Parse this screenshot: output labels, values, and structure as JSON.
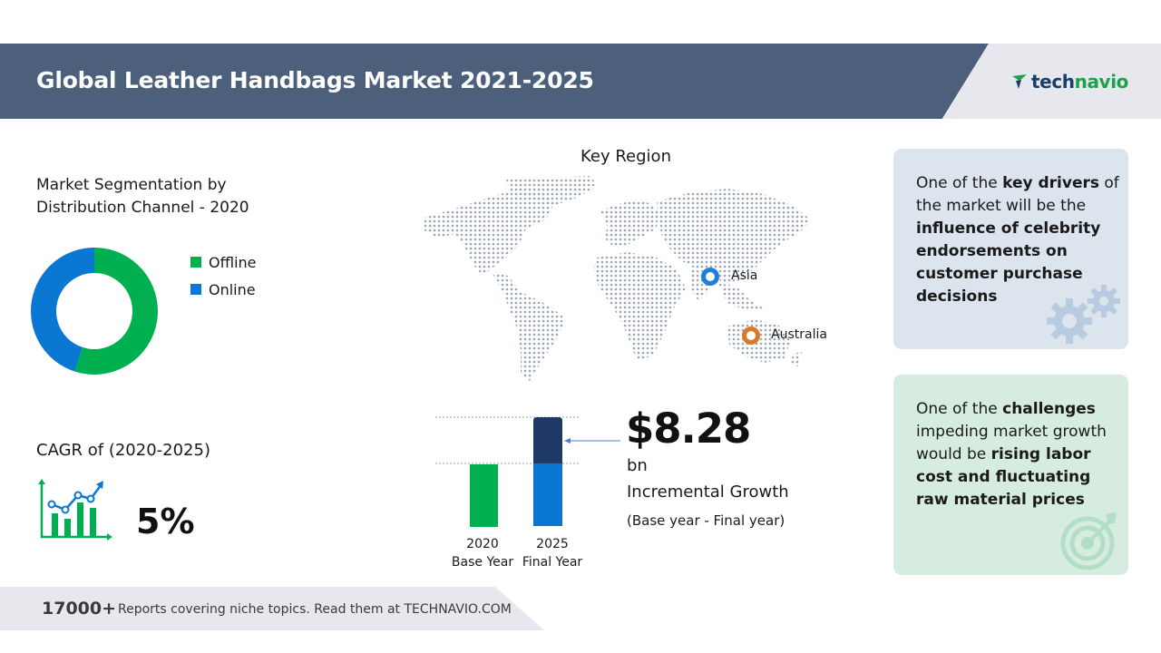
{
  "header": {
    "title": "Global Leather Handbags Market 2021-2025",
    "logo_part1": "tech",
    "logo_part2": "navio",
    "colors": {
      "band": "#4c5f7b",
      "logo_dark": "#1a3f6b",
      "logo_green": "#1fa04a"
    }
  },
  "segmentation": {
    "title_line1": "Market Segmentation by",
    "title_line2": "Distribution Channel - 2020",
    "legend": [
      {
        "label": "Offline",
        "color": "#00b050",
        "icon": "green-square"
      },
      {
        "label": "Online",
        "color": "#0a77d2",
        "icon": "blue-square"
      }
    ],
    "donut_shares": {
      "Offline": 0.55,
      "Online": 0.45
    }
  },
  "cagr": {
    "label": "CAGR of (2020-2025)",
    "value": "5%",
    "icon": "growth-chart-icon"
  },
  "key_region": {
    "title": "Key Region",
    "markers": [
      {
        "label": "Asia",
        "color": "#1f7fd6",
        "icon": "blue-location-marker"
      },
      {
        "label": "Australia",
        "color": "#d97a2b",
        "icon": "orange-location-marker"
      }
    ]
  },
  "growth": {
    "value": "$8.28",
    "unit": "bn",
    "label": "Incremental Growth",
    "sub": "(Base year - Final year)",
    "bars": [
      {
        "year": "2020",
        "caption": "Base Year",
        "color": "#00b050"
      },
      {
        "year": "2025",
        "caption": "Final Year",
        "color_base": "#0a77d2",
        "color_increment": "#1f3864"
      }
    ]
  },
  "cards": {
    "drivers": {
      "pre": "One of the ",
      "bold1": "key drivers",
      "mid": " of the market will be the ",
      "bold2": "influence of celebrity endorsements on customer purchase decisions",
      "icon": "gears-icon",
      "color": "#dce4ee"
    },
    "challenges": {
      "pre": "One of the ",
      "bold1": "challenges",
      "mid": " impeding market growth would be ",
      "bold2": "rising labor cost and fluctuating raw material prices",
      "icon": "target-icon",
      "color": "#d6ece0"
    }
  },
  "footer": {
    "count": "17000+",
    "text": "Reports covering niche topics. Read them at TECHNAVIO.COM"
  }
}
